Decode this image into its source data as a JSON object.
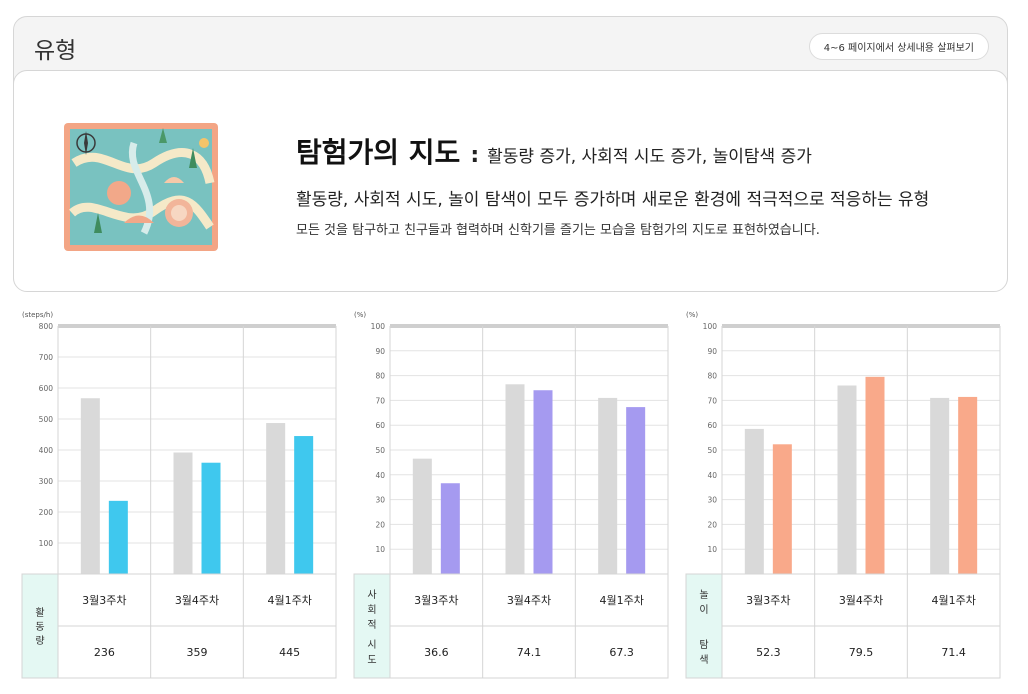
{
  "header": {
    "title": "유형",
    "detail_link": "4~6 페이지에서 상세내용 살펴보기"
  },
  "type_card": {
    "name": "탐험가의 지도",
    "traits": "활동량 증가, 사회적 시도 증가, 놀이탐색 증가",
    "description": "활동량, 사회적 시도, 놀이 탐색이 모두 증가하며 새로운 환경에 적극적으로 적응하는 유형",
    "detail": "모든 것을 탐구하고 친구들과 협력하며 신학기를 즐기는 모습을 탐험가의 지도로 표현하였습니다."
  },
  "chart_data": [
    {
      "type": "bar",
      "unit": "(steps/h)",
      "row_label": "활동량",
      "categories": [
        "3월3주차",
        "3월4주차",
        "4월1주차"
      ],
      "series": [
        {
          "values": [
            567,
            392,
            487
          ],
          "color": "#d9d9d9"
        },
        {
          "values": [
            236,
            359,
            445
          ],
          "color": "#3fc8ee"
        }
      ],
      "table_values": [
        "236",
        "359",
        "445"
      ],
      "ylim": [
        0,
        800
      ],
      "yticks": [
        100,
        200,
        300,
        400,
        500,
        600,
        700,
        800
      ],
      "grid": true,
      "label_bg": "#e4f8f3"
    },
    {
      "type": "bar",
      "unit": "(%)",
      "row_label": "사회적\n시도",
      "categories": [
        "3월3주차",
        "3월4주차",
        "4월1주차"
      ],
      "series": [
        {
          "values": [
            46.5,
            76.5,
            71
          ],
          "color": "#d9d9d9"
        },
        {
          "values": [
            36.6,
            74.1,
            67.3
          ],
          "color": "#a59af0"
        }
      ],
      "table_values": [
        "36.6",
        "74.1",
        "67.3"
      ],
      "ylim": [
        0,
        100
      ],
      "yticks": [
        10,
        20,
        30,
        40,
        50,
        60,
        70,
        80,
        90,
        100
      ],
      "grid": true,
      "label_bg": "#e4f8f3"
    },
    {
      "type": "bar",
      "unit": "(%)",
      "row_label": "놀이\n탐색",
      "categories": [
        "3월3주차",
        "3월4주차",
        "4월1주차"
      ],
      "series": [
        {
          "values": [
            58.5,
            76,
            71
          ],
          "color": "#d9d9d9"
        },
        {
          "values": [
            52.3,
            79.5,
            71.4
          ],
          "color": "#f9a98a"
        }
      ],
      "table_values": [
        "52.3",
        "79.5",
        "71.4"
      ],
      "ylim": [
        0,
        100
      ],
      "yticks": [
        10,
        20,
        30,
        40,
        50,
        60,
        70,
        80,
        90,
        100
      ],
      "grid": true,
      "label_bg": "#e4f8f3"
    }
  ]
}
